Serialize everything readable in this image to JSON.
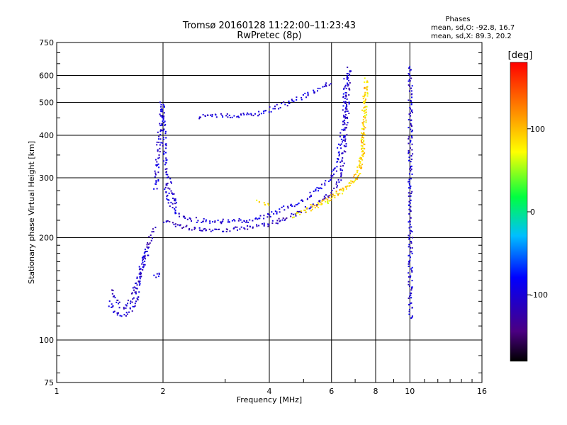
{
  "chart_data": {
    "type": "scatter",
    "title": "Tromsø 20160128 11:22:00–11:23:43",
    "subtitle": "RwPretec (8p)",
    "xlabel": "Frequency [MHz]",
    "ylabel": "Stationary phase Virtual Height [km]",
    "x_scale": "log",
    "y_scale": "log",
    "xlim": [
      1,
      16
    ],
    "ylim": [
      75,
      750
    ],
    "x_ticks": [
      1,
      2,
      4,
      6,
      8,
      10,
      16
    ],
    "y_ticks": [
      75,
      100,
      200,
      300,
      400,
      500,
      600,
      750
    ],
    "grid": true,
    "stats": {
      "heading": "Phases",
      "o_line": "mean, sd,O: -92.8, 16.7",
      "x_line": "mean, sd,X:  89.3, 20.2"
    },
    "colorbar": {
      "label": "[deg]",
      "range": [
        -180,
        180
      ],
      "ticks": [
        100,
        0,
        -100
      ],
      "tick_labels": [
        "100",
        "0",
        "-100"
      ],
      "position": "right"
    },
    "traces": [
      {
        "phase": -100,
        "points": [
          [
            1.4,
            130
          ],
          [
            1.45,
            121
          ],
          [
            1.5,
            118
          ],
          [
            1.55,
            119
          ],
          [
            1.6,
            121
          ],
          [
            1.65,
            126
          ],
          [
            1.68,
            135
          ],
          [
            1.7,
            150
          ],
          [
            1.75,
            170
          ],
          [
            1.8,
            190
          ]
        ]
      },
      {
        "phase": -110,
        "points": [
          [
            1.42,
            140
          ],
          [
            1.48,
            128
          ],
          [
            1.55,
            125
          ],
          [
            1.62,
            132
          ],
          [
            1.67,
            145
          ],
          [
            1.72,
            160
          ],
          [
            1.78,
            178
          ],
          [
            1.83,
            196
          ],
          [
            1.88,
            215
          ]
        ]
      },
      {
        "phase": -100,
        "points": [
          [
            1.88,
            155
          ],
          [
            1.92,
            154
          ],
          [
            1.95,
            160
          ]
        ]
      },
      {
        "phase": -100,
        "points": [
          [
            1.9,
            280
          ],
          [
            1.93,
            360
          ],
          [
            1.96,
            430
          ],
          [
            1.98,
            500
          ],
          [
            2.0,
            420
          ],
          [
            2.02,
            340
          ],
          [
            2.06,
            300
          ],
          [
            2.1,
            275
          ],
          [
            2.15,
            260
          ],
          [
            2.2,
            245
          ]
        ]
      },
      {
        "phase": -100,
        "points": [
          [
            2.02,
            290
          ],
          [
            2.08,
            255
          ],
          [
            2.15,
            240
          ],
          [
            2.3,
            230
          ],
          [
            2.5,
            226
          ],
          [
            2.8,
            224
          ],
          [
            3.2,
            225
          ],
          [
            3.6,
            226
          ]
        ]
      },
      {
        "phase": -110,
        "points": [
          [
            2.0,
            225
          ],
          [
            2.2,
            218
          ],
          [
            2.4,
            214
          ],
          [
            2.7,
            212
          ],
          [
            3.0,
            212
          ],
          [
            3.4,
            214
          ],
          [
            3.8,
            218
          ],
          [
            4.2,
            224
          ],
          [
            4.6,
            232
          ],
          [
            5.0,
            242
          ],
          [
            5.5,
            255
          ],
          [
            6.0,
            272
          ],
          [
            6.3,
            300
          ],
          [
            6.5,
            370
          ],
          [
            6.6,
            450
          ],
          [
            6.65,
            550
          ],
          [
            6.7,
            640
          ]
        ]
      },
      {
        "phase": -95,
        "points": [
          [
            3.6,
            228
          ],
          [
            4.0,
            235
          ],
          [
            4.5,
            247
          ],
          [
            5.0,
            260
          ],
          [
            5.5,
            280
          ],
          [
            6.0,
            300
          ],
          [
            6.2,
            340
          ],
          [
            6.4,
            400
          ],
          [
            6.5,
            470
          ],
          [
            6.55,
            560
          ],
          [
            6.6,
            620
          ]
        ]
      },
      {
        "phase": -100,
        "points": [
          [
            2.5,
            455
          ],
          [
            2.8,
            458
          ],
          [
            3.2,
            460
          ],
          [
            3.6,
            462
          ],
          [
            4.0,
            478
          ],
          [
            4.5,
            500
          ],
          [
            5.0,
            525
          ],
          [
            5.5,
            550
          ],
          [
            6.0,
            575
          ]
        ]
      },
      {
        "phase": 80,
        "points": [
          [
            4.6,
            232
          ],
          [
            5.0,
            240
          ],
          [
            5.5,
            250
          ],
          [
            6.0,
            262
          ],
          [
            6.5,
            280
          ],
          [
            7.0,
            300
          ],
          [
            7.2,
            330
          ],
          [
            7.3,
            380
          ],
          [
            7.4,
            440
          ],
          [
            7.45,
            520
          ],
          [
            7.5,
            600
          ]
        ]
      },
      {
        "phase": 100,
        "points": [
          [
            5.2,
            248
          ],
          [
            5.8,
            262
          ],
          [
            6.3,
            275
          ],
          [
            6.8,
            290
          ],
          [
            7.1,
            310
          ],
          [
            7.3,
            360
          ],
          [
            7.35,
            420
          ],
          [
            7.4,
            480
          ],
          [
            7.45,
            560
          ]
        ]
      },
      {
        "phase": 85,
        "points": [
          [
            3.7,
            258
          ],
          [
            3.85,
            255
          ],
          [
            4.0,
            252
          ]
        ]
      },
      {
        "phase": -100,
        "points": [
          [
            9.95,
            640
          ],
          [
            9.97,
            580
          ],
          [
            10.0,
            520
          ],
          [
            10.0,
            460
          ],
          [
            10.0,
            420
          ],
          [
            9.98,
            270
          ],
          [
            10.0,
            220
          ],
          [
            10.0,
            175
          ],
          [
            9.98,
            140
          ],
          [
            10.0,
            115
          ]
        ]
      }
    ]
  }
}
